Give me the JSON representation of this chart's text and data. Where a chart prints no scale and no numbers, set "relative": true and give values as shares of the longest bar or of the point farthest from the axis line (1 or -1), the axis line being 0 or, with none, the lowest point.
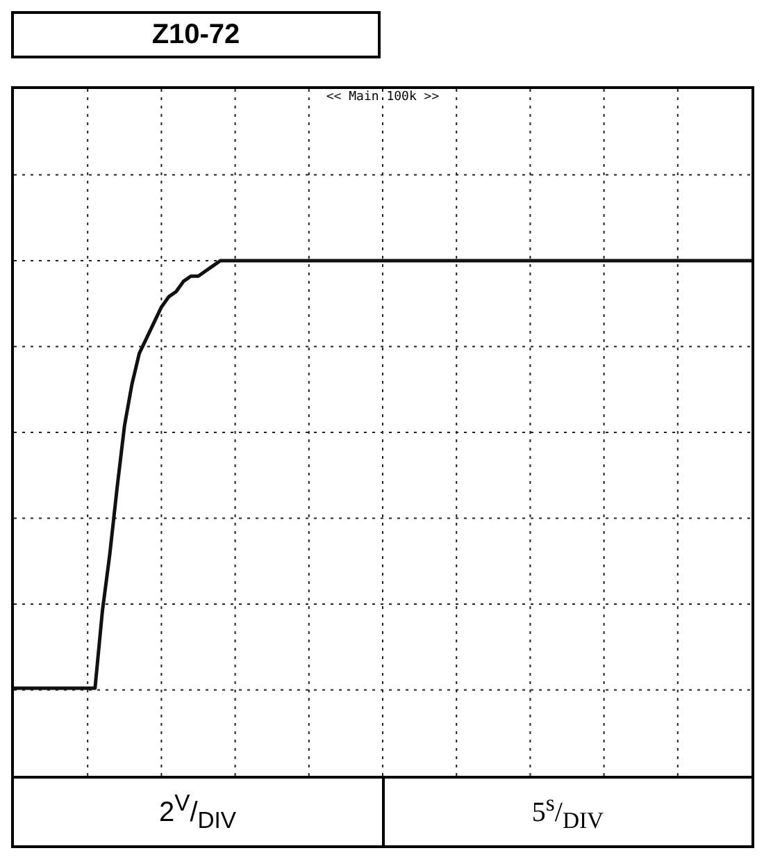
{
  "chart_data": {
    "type": "line",
    "title": "Z10-72",
    "relative": true,
    "grid": true,
    "annotations": [
      "<< Main 100k >>",
      "2$^{V}$/$_{DIV}$",
      "5$^{s}$/$_{DIV}$"
    ],
    "categories": [
      null,
      null,
      null,
      null,
      null,
      null,
      null,
      null,
      null,
      null,
      null,
      null,
      null,
      null,
      null,
      null,
      null,
      null,
      null,
      null,
      null,
      null,
      null,
      null,
      null,
      null,
      null,
      null,
      null,
      null,
      null,
      null,
      null,
      null,
      null,
      null,
      null,
      null,
      null,
      null,
      null,
      null,
      null,
      null,
      null,
      null,
      null,
      null,
      null,
      null,
      null,
      null,
      null,
      null,
      null,
      null,
      null,
      null,
      null,
      null,
      null,
      null,
      null,
      null,
      null,
      null,
      null,
      null,
      null,
      null,
      null,
      null,
      null,
      null,
      null,
      null,
      null,
      null,
      null,
      null,
      null,
      null,
      null,
      null,
      null,
      null,
      null,
      null,
      null,
      null,
      null,
      null,
      null,
      null,
      null,
      null,
      null,
      null,
      null,
      null,
      null
    ],
    "series": [
      {
        "color": "#111111",
        "values": [
          0.17,
          0.17,
          0.17,
          0.17,
          0.17,
          0.17,
          0.17,
          0.17,
          0.17,
          0.17,
          0.17,
          0.17,
          0.32,
          0.43,
          0.56,
          0.68,
          0.76,
          0.82,
          0.85,
          0.88,
          0.91,
          0.93,
          0.94,
          0.96,
          0.97,
          0.97,
          0.98,
          0.99,
          1,
          1,
          1,
          1,
          1,
          1,
          1,
          1,
          1,
          1,
          1,
          1,
          1,
          1,
          1,
          1,
          1,
          1,
          1,
          1,
          1,
          1,
          1,
          1,
          1,
          1,
          1,
          1,
          1,
          1,
          1,
          1,
          1,
          1,
          1,
          1,
          1,
          1,
          1,
          1,
          1,
          1,
          1,
          1,
          1,
          1,
          1,
          1,
          1,
          1,
          1,
          1,
          1,
          1,
          1,
          1,
          1,
          1,
          1,
          1,
          1,
          1,
          1,
          1,
          1,
          1,
          1,
          1,
          1,
          1,
          1,
          1,
          1
        ]
      }
    ]
  }
}
